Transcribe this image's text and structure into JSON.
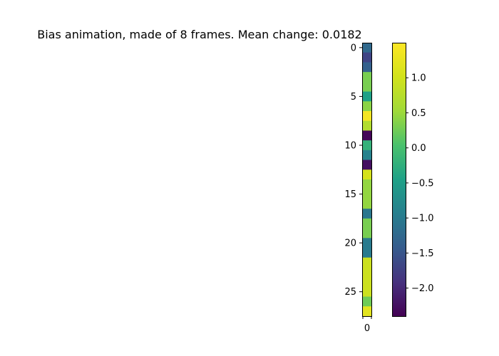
{
  "chart_data": {
    "type": "heatmap",
    "title": "Bias animation, made of 8 frames. Mean change: 0.0182",
    "values": [
      -1.25,
      -1.7,
      -1.35,
      0.3,
      0.3,
      -0.45,
      0.4,
      1.4,
      0.7,
      -2.35,
      -0.2,
      -0.9,
      -2.25,
      1.05,
      0.45,
      0.45,
      0.45,
      -1.05,
      0.3,
      0.3,
      -1.0,
      -1.0,
      0.95,
      0.95,
      0.95,
      0.95,
      0.25,
      1.2
    ],
    "rows": 28,
    "cols": 1,
    "yticks": [
      "0",
      "5",
      "10",
      "15",
      "20",
      "25"
    ],
    "xticks": [
      "0"
    ],
    "colorbar": {
      "vmin": -2.4,
      "vmax": 1.5,
      "ticks": [
        "1.0",
        "0.5",
        "0.0",
        "−0.5",
        "−1.0",
        "−1.5",
        "−2.0"
      ],
      "colormap": "viridis"
    },
    "grid": false
  }
}
